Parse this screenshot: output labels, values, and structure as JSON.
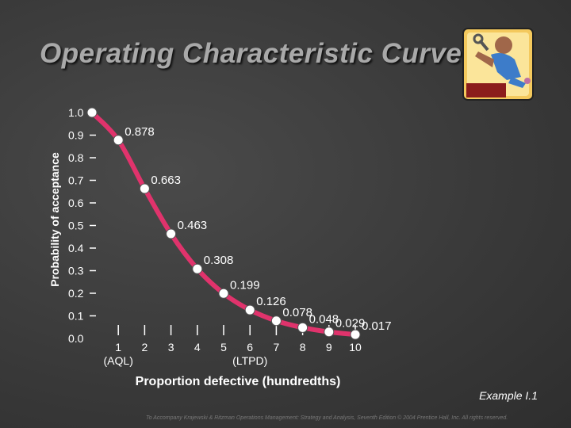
{
  "slide": {
    "title": "Operating Characteristic Curve",
    "example": "Example I.1",
    "footer": "To Accompany Krajewski & Ritzman Operations Management: Strategy and Analysis, Seventh Edition © 2004 Prentice Hall, Inc. All rights reserved."
  },
  "colors": {
    "curve": "#e0336c",
    "point": "#ffffff",
    "text": "#ffffff"
  },
  "chart_data": {
    "type": "line",
    "title": "",
    "xlabel": "Proportion defective (hundredths)",
    "ylabel": "Probability of acceptance",
    "x": [
      0,
      1,
      2,
      3,
      4,
      5,
      6,
      7,
      8,
      9,
      10
    ],
    "values": [
      1.0,
      0.878,
      0.663,
      0.463,
      0.308,
      0.199,
      0.126,
      0.078,
      0.048,
      0.029,
      0.017
    ],
    "value_labels": [
      "",
      "0.878",
      "0.663",
      "0.463",
      "0.308",
      "0.199",
      "0.126",
      "0.078",
      "0.048",
      "0.029",
      "0.017"
    ],
    "xlim": [
      0,
      10
    ],
    "ylim": [
      0,
      1.0
    ],
    "x_ticks": [
      1,
      2,
      3,
      4,
      5,
      6,
      7,
      8,
      9,
      10
    ],
    "x_tick_labels": [
      "1",
      "2",
      "3",
      "4",
      "5",
      "6",
      "7",
      "8",
      "9",
      "10"
    ],
    "y_ticks": [
      0.0,
      0.1,
      0.2,
      0.3,
      0.4,
      0.5,
      0.6,
      0.7,
      0.8,
      0.9,
      1.0
    ],
    "y_tick_labels": [
      "0.0",
      "0.1",
      "0.2",
      "0.3",
      "0.4",
      "0.5",
      "0.6",
      "0.7",
      "0.8",
      "0.9",
      "1.0"
    ],
    "annotations": [
      {
        "x": 1,
        "text": "(AQL)"
      },
      {
        "x": 6,
        "text": "(LTPD)"
      }
    ],
    "grid": false,
    "legend": "none"
  }
}
